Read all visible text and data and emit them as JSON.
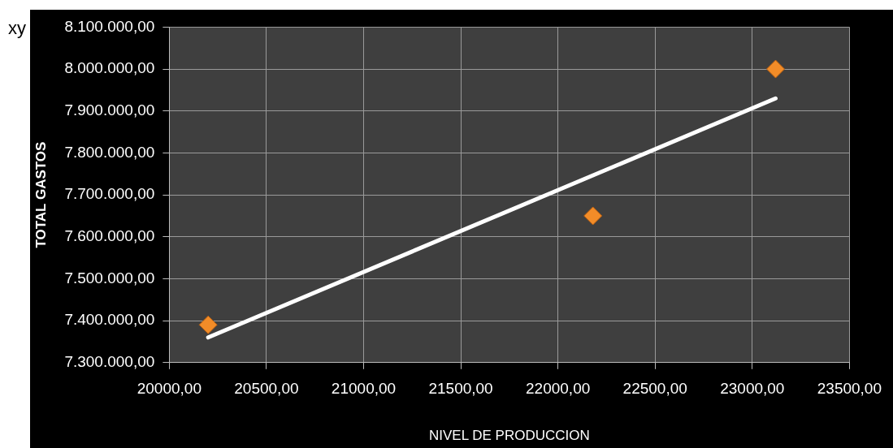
{
  "chart_data": {
    "type": "scatter",
    "xlabel": "NIVEL DE PRODUCCION",
    "ylabel": "TOTAL GASTOS",
    "annotations": [
      "xy"
    ],
    "series": [
      {
        "type": "scatter",
        "color": "#f28c28",
        "x": [
          20200,
          22180,
          23120
        ],
        "values": [
          7390000,
          7650000,
          8000000
        ],
        "marker": "diamond"
      },
      {
        "type": "line",
        "color": "#ffffff",
        "x": [
          20200,
          23120
        ],
        "values": [
          7360000,
          7930000
        ],
        "marker": "none",
        "line_style": "solid"
      }
    ],
    "xlim": [
      20000,
      23500
    ],
    "xticks": [
      {
        "value": 20000,
        "label": "20000,00"
      },
      {
        "value": 20500,
        "label": "20500,00"
      },
      {
        "value": 21000,
        "label": "21000,00"
      },
      {
        "value": 21500,
        "label": "21500,00"
      },
      {
        "value": 22000,
        "label": "22000,00"
      },
      {
        "value": 22500,
        "label": "22500,00"
      },
      {
        "value": 23000,
        "label": "23000,00"
      },
      {
        "value": 23500,
        "label": "23500,00"
      }
    ],
    "ylim": [
      7300000,
      8100000
    ],
    "yticks": [
      {
        "value": 7300000,
        "label": "7.300.000,00"
      },
      {
        "value": 7400000,
        "label": "7.400.000,00"
      },
      {
        "value": 7500000,
        "label": "7.500.000,00"
      },
      {
        "value": 7600000,
        "label": "7.600.000,00"
      },
      {
        "value": 7700000,
        "label": "7.700.000,00"
      },
      {
        "value": 7800000,
        "label": "7.800.000,00"
      },
      {
        "value": 7900000,
        "label": "7.900.000,00"
      },
      {
        "value": 8000000,
        "label": "8.000.000,00"
      },
      {
        "value": 8100000,
        "label": "8.100.000,00"
      }
    ],
    "grid": true,
    "legend": false
  }
}
